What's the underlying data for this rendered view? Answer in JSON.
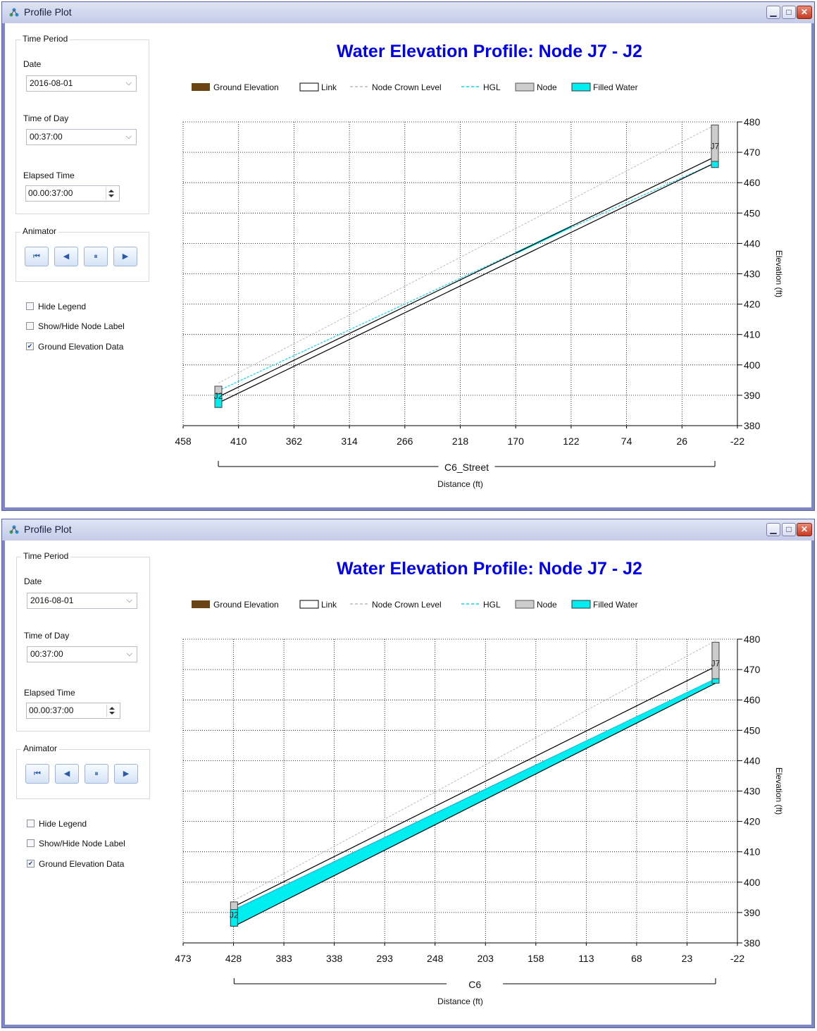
{
  "window_title": "Profile Plot",
  "panel": {
    "time_period_label": "Time Period",
    "date_label": "Date",
    "date_value": "2016-08-01",
    "time_of_day_label": "Time of Day",
    "time_of_day_value": "00:37:00",
    "elapsed_label": "Elapsed Time",
    "elapsed_value": "00.00:37:00",
    "animator_label": "Animator",
    "animator_buttons": [
      "go-to-start",
      "step-back",
      "pause",
      "play"
    ],
    "checkboxes": [
      {
        "label": "Hide Legend",
        "checked": false
      },
      {
        "label": "Show/Hide Node Label",
        "checked": false
      },
      {
        "label": "Ground Elevation Data",
        "checked": true
      }
    ]
  },
  "colors": {
    "title": "#0000ee",
    "ground": "#6b4414",
    "hgl": "#00d8f0",
    "filled_water": "#00eef0",
    "node": "#cccccc",
    "crown": "#bbbbbb"
  },
  "chart_data": [
    {
      "type": "line",
      "title": "Water Elevation Profile: Node J7 - J2",
      "legend": [
        "Ground Elevation",
        "Link",
        "Node Crown Level",
        "HGL",
        "Node",
        "Filled Water"
      ],
      "legend_placement": "top",
      "xlabel": "Distance (ft)",
      "ylabel": "Elevation (ft)",
      "xlim": [
        458,
        -22
      ],
      "x_ticks": [
        458,
        410,
        362,
        314,
        266,
        218,
        170,
        122,
        74,
        26,
        -22
      ],
      "ylim": [
        380,
        480
      ],
      "y_ticks": [
        380,
        390,
        400,
        410,
        420,
        430,
        440,
        450,
        460,
        470,
        480
      ],
      "grid": true,
      "link_name": "C6_Street",
      "nodes": [
        {
          "name": "J2",
          "x": 427.5,
          "invert": 386,
          "crown": 393
        },
        {
          "name": "J7",
          "x": -2.5,
          "invert": 465,
          "crown": 479
        }
      ],
      "link_lines": [
        {
          "x": [
            427.5,
            -2.5
          ],
          "y": [
            387.5,
            466.5
          ]
        },
        {
          "x": [
            427.5,
            -2.5
          ],
          "y": [
            389.5,
            468.5
          ]
        }
      ],
      "crown_line": {
        "x": [
          427.5,
          -2.5
        ],
        "y": [
          394,
          479
        ]
      },
      "hgl": {
        "x": [
          427.5,
          170,
          -2.5
        ],
        "y": [
          391.5,
          437,
          466.5
        ]
      },
      "filled_water": [
        {
          "x": [
            427.5,
            427.5
          ],
          "y": [
            386,
            390.5
          ]
        },
        {
          "x": [
            170,
            122
          ],
          "y": [
            436.8,
            445.5
          ]
        },
        {
          "x": [
            -2.5,
            -2.5
          ],
          "y": [
            465,
            467
          ]
        }
      ]
    },
    {
      "type": "line",
      "title": "Water Elevation Profile: Node J7 - J2",
      "legend": [
        "Ground Elevation",
        "Link",
        "Node Crown Level",
        "HGL",
        "Node",
        "Filled Water"
      ],
      "legend_placement": "top",
      "xlabel": "Distance (ft)",
      "ylabel": "Elevation (ft)",
      "xlim": [
        473,
        -22
      ],
      "x_ticks": [
        473,
        428,
        383,
        338,
        293,
        248,
        203,
        158,
        113,
        68,
        23,
        -22
      ],
      "ylim": [
        380,
        480
      ],
      "y_ticks": [
        380,
        390,
        400,
        410,
        420,
        430,
        440,
        450,
        460,
        470,
        480
      ],
      "grid": true,
      "link_name": "C6",
      "nodes": [
        {
          "name": "J2",
          "x": 427.5,
          "invert": 385.5,
          "crown": 393.5
        },
        {
          "name": "J7",
          "x": -2.5,
          "invert": 465.5,
          "crown": 479
        }
      ],
      "link_lines": [
        {
          "x": [
            427.5,
            -2.5
          ],
          "y": [
            385.5,
            465.5
          ]
        },
        {
          "x": [
            427.5,
            -2.5
          ],
          "y": [
            392,
            471
          ]
        }
      ],
      "crown_line": {
        "x": [
          427.5,
          -2.5
        ],
        "y": [
          394,
          479.5
        ]
      },
      "hgl": {
        "x": [
          427.5,
          -2.5
        ],
        "y": [
          390.5,
          467
        ]
      },
      "filled_water": [
        {
          "x": [
            427.5,
            -2.5
          ],
          "y_top": [
            391,
            467
          ],
          "y_bottom": [
            385.5,
            465.5
          ]
        }
      ]
    }
  ]
}
